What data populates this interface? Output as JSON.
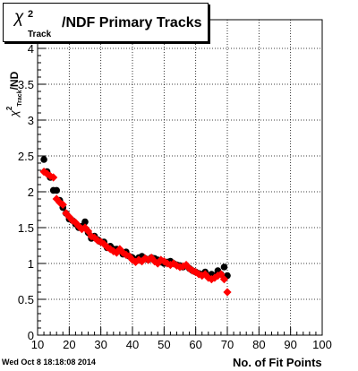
{
  "chart_data": {
    "type": "scatter",
    "title": {
      "prefix": "χ",
      "superscript": "2",
      "subscript": "Track",
      "rest": "/NDF Primary Tracks"
    },
    "xlabel": "No. of Fit Points",
    "ylabel": {
      "prefix": "χ",
      "superscript": "2",
      "subscript": "Track",
      "rest": "/ND"
    },
    "xlim": [
      10,
      100
    ],
    "ylim": [
      0,
      4.4
    ],
    "grid": true,
    "x_ticks": [
      "10",
      "20",
      "30",
      "40",
      "50",
      "60",
      "70",
      "80",
      "90",
      "100"
    ],
    "y_ticks": [
      "0",
      "0.5",
      "1",
      "1.5",
      "2",
      "2.5",
      "3",
      "3.5",
      "4"
    ],
    "colors": {
      "series_black": "#000000",
      "series_red": "#ff0000"
    },
    "series": [
      {
        "marker": "circle",
        "color": "#000000",
        "x": [
          12,
          13,
          14,
          15,
          16,
          17,
          18,
          19,
          20,
          21,
          22,
          23,
          24,
          25,
          26,
          27,
          28,
          29,
          30,
          31,
          32,
          33,
          34,
          35,
          36,
          37,
          38,
          39,
          40,
          41,
          42,
          43,
          44,
          45,
          46,
          47,
          48,
          49,
          50,
          51,
          52,
          53,
          54,
          55,
          56,
          57,
          58,
          59,
          60,
          61,
          62,
          63,
          64,
          65,
          66,
          67,
          68,
          69,
          70
        ],
        "y": [
          2.45,
          2.28,
          2.2,
          2.02,
          2.02,
          1.88,
          1.78,
          1.7,
          1.62,
          1.6,
          1.55,
          1.5,
          1.52,
          1.58,
          1.43,
          1.35,
          1.38,
          1.33,
          1.3,
          1.3,
          1.22,
          1.24,
          1.2,
          1.2,
          1.18,
          1.13,
          1.16,
          1.1,
          1.08,
          1.05,
          1.08,
          1.1,
          1.07,
          1.05,
          1.08,
          1.07,
          1.05,
          1.02,
          1.0,
          1.02,
          1.03,
          1.0,
          0.98,
          0.97,
          0.95,
          0.97,
          0.93,
          0.9,
          0.88,
          0.86,
          0.85,
          0.88,
          0.82,
          0.85,
          0.83,
          0.9,
          0.85,
          0.95,
          0.83
        ]
      },
      {
        "marker": "diamond",
        "color": "#ff0000",
        "x": [
          12,
          13,
          14,
          15,
          16,
          17,
          18,
          19,
          20,
          21,
          22,
          23,
          24,
          25,
          26,
          27,
          28,
          29,
          30,
          31,
          32,
          33,
          34,
          35,
          36,
          37,
          38,
          39,
          40,
          41,
          42,
          43,
          44,
          45,
          46,
          47,
          48,
          49,
          50,
          51,
          52,
          53,
          54,
          55,
          56,
          57,
          58,
          59,
          60,
          61,
          62,
          63,
          64,
          65,
          66,
          67,
          68,
          69,
          70
        ],
        "y": [
          2.28,
          2.25,
          2.22,
          2.2,
          1.9,
          1.85,
          1.82,
          1.7,
          1.65,
          1.6,
          1.57,
          1.52,
          1.48,
          1.5,
          1.45,
          1.38,
          1.36,
          1.32,
          1.3,
          1.27,
          1.23,
          1.2,
          1.17,
          1.15,
          1.2,
          1.15,
          1.12,
          1.1,
          1.05,
          1.02,
          1.05,
          1.03,
          1.07,
          1.05,
          1.08,
          1.03,
          1.0,
          1.05,
          1.03,
          1.0,
          0.98,
          1.0,
          0.97,
          0.95,
          0.96,
          0.98,
          0.93,
          0.9,
          0.88,
          0.85,
          0.83,
          0.85,
          0.8,
          0.78,
          0.8,
          0.83,
          0.85,
          0.78,
          0.6
        ]
      }
    ]
  },
  "footer": {
    "timestamp": "Wed Oct  8 18:18:08 2014"
  }
}
